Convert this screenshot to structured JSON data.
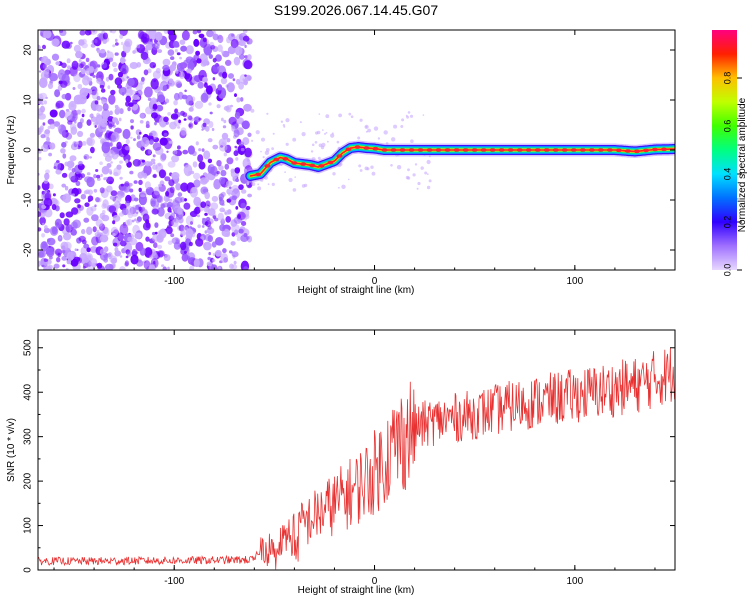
{
  "title": "S199.2026.067.14.45.G07",
  "colors": {
    "snr_line": "#e83232",
    "speckle_dark": "#6a00ff",
    "speckle_light": "#c8a8ff",
    "axis": "#000000"
  },
  "chart_data": [
    {
      "type": "heatmap",
      "title": "S199.2026.067.14.45.G07",
      "xlabel": "Height of straight line (km)",
      "ylabel": "Frequency (Hz)",
      "xlim": [
        -168,
        150
      ],
      "ylim": [
        -24,
        24
      ],
      "xticks": [
        -100,
        0,
        100
      ],
      "yticks": [
        -20,
        -10,
        0,
        10,
        20
      ],
      "noise_region_x": [
        -168,
        -62
      ],
      "ridge": {
        "description": "frequency of spectral peak vs height",
        "x": [
          -62,
          -57,
          -52,
          -47,
          -44,
          -40,
          -36,
          -32,
          -28,
          -24,
          -20,
          -16,
          -12,
          -8,
          -4,
          0,
          5,
          10,
          20,
          40,
          60,
          80,
          100,
          120,
          130,
          140,
          150
        ],
        "y": [
          -5.2,
          -4.8,
          -2.5,
          -1.5,
          -1.8,
          -2.6,
          -2.8,
          -3.0,
          -3.4,
          -2.8,
          -2.2,
          -0.6,
          0.4,
          0.6,
          0.4,
          0.3,
          0.0,
          0.0,
          0.0,
          0.0,
          0.0,
          0.0,
          0.0,
          0.0,
          -0.3,
          0.1,
          0.2
        ]
      },
      "colorbar": {
        "label": "Normalized spectral amplitude",
        "range": [
          0.0,
          1.0
        ],
        "ticks": [
          "0.0",
          "0.2",
          "0.4",
          "0.6",
          "0.8"
        ]
      }
    },
    {
      "type": "line",
      "xlabel": "Height of straight line (km)",
      "ylabel": "SNR (10 * v/v)",
      "xlim": [
        -168,
        150
      ],
      "ylim": [
        0,
        540
      ],
      "xticks": [
        -100,
        0,
        100
      ],
      "yticks": [
        0,
        100,
        200,
        300,
        400,
        500
      ],
      "series": [
        {
          "name": "SNR",
          "x": [
            -168,
            -140,
            -110,
            -80,
            -60,
            -55,
            -50,
            -45,
            -40,
            -30,
            -20,
            -10,
            0,
            10,
            20,
            30,
            50,
            70,
            90,
            110,
            130,
            150
          ],
          "y": [
            20,
            20,
            21,
            22,
            23,
            60,
            40,
            70,
            90,
            120,
            150,
            180,
            220,
            280,
            320,
            335,
            350,
            370,
            385,
            400,
            415,
            445
          ]
        }
      ]
    }
  ]
}
